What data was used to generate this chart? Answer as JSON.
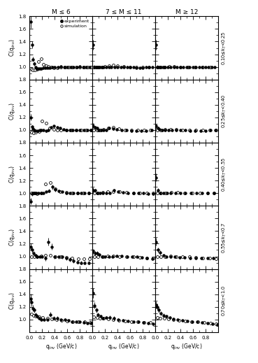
{
  "col_labels": [
    "M ≤ 6",
    "7 ≤ M ≤ 11",
    "M ≥ 12"
  ],
  "row_labels_right": [
    "0.10≤kₜ<0.25",
    "0.25≤kₜ<0.40",
    "0.40≤kₜ<0.55",
    "0.55≤kₜ<0.7",
    "0.70≤kₜ<1.0"
  ],
  "ylim": [
    0.8,
    1.8
  ],
  "yticks": [
    1.0,
    1.2,
    1.4,
    1.6,
    1.8
  ],
  "xlim": [
    0.0,
    1.0
  ],
  "xticks": [
    0.0,
    0.2,
    0.4,
    0.6,
    0.8
  ],
  "panels": {
    "r0c0_exp_x": [
      0.012,
      0.035,
      0.055,
      0.075,
      0.095,
      0.115,
      0.14,
      0.165,
      0.19,
      0.22,
      0.25,
      0.28,
      0.32,
      0.36,
      0.4,
      0.45,
      0.5,
      0.55,
      0.6,
      0.65,
      0.7,
      0.75,
      0.8,
      0.85,
      0.9,
      0.95
    ],
    "r0c0_exp_y": [
      1.72,
      1.35,
      1.12,
      1.05,
      1.0,
      0.97,
      0.97,
      0.97,
      0.97,
      0.98,
      0.98,
      0.99,
      0.99,
      1.0,
      1.0,
      1.0,
      1.01,
      1.0,
      1.0,
      1.0,
      1.0,
      1.0,
      1.01,
      1.0,
      1.0,
      1.0
    ],
    "r0c0_exp_ye": [
      0.1,
      0.06,
      0.04,
      0.03,
      0.02,
      0.02,
      0.02,
      0.02,
      0.02,
      0.02,
      0.02,
      0.02,
      0.02,
      0.02,
      0.02,
      0.02,
      0.02,
      0.02,
      0.02,
      0.02,
      0.02,
      0.02,
      0.02,
      0.02,
      0.02,
      0.02
    ],
    "r0c0_sim_x": [
      0.025,
      0.055,
      0.085,
      0.115,
      0.145,
      0.18,
      0.22,
      0.26,
      0.3,
      0.34,
      0.38,
      0.44,
      0.5,
      0.56,
      0.62,
      0.68,
      0.74,
      0.8,
      0.86,
      0.92,
      0.98
    ],
    "r0c0_sim_y": [
      0.96,
      0.95,
      0.95,
      0.96,
      1.08,
      1.13,
      1.04,
      1.02,
      1.01,
      1.0,
      0.99,
      0.99,
      1.0,
      1.0,
      1.0,
      1.0,
      1.0,
      1.0,
      1.0,
      1.0,
      1.0
    ],
    "r0c1_exp_x": [
      0.012,
      0.035,
      0.055,
      0.075,
      0.095,
      0.12,
      0.15,
      0.18,
      0.22,
      0.26,
      0.3,
      0.35,
      0.4,
      0.45,
      0.5,
      0.55,
      0.6,
      0.65,
      0.7,
      0.75,
      0.8,
      0.85,
      0.9,
      0.95
    ],
    "r0c1_exp_y": [
      1.35,
      1.0,
      1.0,
      1.0,
      1.0,
      1.0,
      1.0,
      1.0,
      1.0,
      1.0,
      1.0,
      1.0,
      1.0,
      1.0,
      1.0,
      1.0,
      1.0,
      1.0,
      0.99,
      0.99,
      0.99,
      1.0,
      1.0,
      1.0
    ],
    "r0c1_exp_ye": [
      0.08,
      0.03,
      0.02,
      0.02,
      0.02,
      0.02,
      0.02,
      0.02,
      0.02,
      0.02,
      0.02,
      0.02,
      0.02,
      0.02,
      0.02,
      0.02,
      0.02,
      0.02,
      0.02,
      0.02,
      0.02,
      0.02,
      0.02,
      0.02
    ],
    "r0c1_sim_x": [
      0.025,
      0.06,
      0.1,
      0.15,
      0.2,
      0.26,
      0.33,
      0.4,
      0.5,
      0.6,
      0.7,
      0.8,
      0.9
    ],
    "r0c1_sim_y": [
      1.0,
      1.0,
      1.0,
      1.0,
      1.01,
      1.02,
      1.03,
      1.02,
      1.01,
      1.0,
      1.0,
      1.0,
      1.0
    ],
    "r0c2_exp_x": [
      0.012,
      0.035,
      0.06,
      0.09,
      0.12,
      0.16,
      0.2,
      0.25,
      0.3,
      0.35,
      0.4,
      0.45,
      0.5,
      0.55,
      0.6,
      0.65,
      0.7,
      0.75,
      0.8,
      0.85,
      0.9,
      0.95
    ],
    "r0c2_exp_y": [
      1.35,
      1.0,
      1.0,
      1.0,
      1.0,
      1.0,
      1.0,
      1.0,
      1.0,
      1.0,
      1.0,
      1.0,
      1.0,
      1.0,
      1.0,
      1.0,
      1.0,
      1.0,
      1.0,
      1.0,
      1.0,
      1.0
    ],
    "r0c2_exp_ye": [
      0.08,
      0.03,
      0.02,
      0.02,
      0.02,
      0.02,
      0.02,
      0.02,
      0.02,
      0.02,
      0.02,
      0.02,
      0.02,
      0.02,
      0.02,
      0.02,
      0.02,
      0.02,
      0.02,
      0.02,
      0.02,
      0.02
    ],
    "r0c2_sim_x": [
      0.03,
      0.08,
      0.14,
      0.22,
      0.3,
      0.4,
      0.52,
      0.64,
      0.76,
      0.88
    ],
    "r0c2_sim_y": [
      1.0,
      1.0,
      1.0,
      1.01,
      1.01,
      1.0,
      1.0,
      1.0,
      1.0,
      1.0
    ],
    "r1c0_exp_x": [
      0.012,
      0.035,
      0.055,
      0.075,
      0.1,
      0.13,
      0.16,
      0.19,
      0.22,
      0.26,
      0.3,
      0.34,
      0.39,
      0.44,
      0.49,
      0.54,
      0.59,
      0.64,
      0.69,
      0.74,
      0.8,
      0.86,
      0.92,
      0.98
    ],
    "r1c0_exp_y": [
      1.2,
      1.05,
      1.02,
      1.0,
      0.99,
      0.99,
      1.0,
      1.0,
      1.0,
      0.99,
      1.0,
      1.04,
      1.06,
      1.04,
      1.03,
      1.01,
      1.0,
      1.0,
      1.0,
      1.0,
      1.0,
      1.0,
      1.0,
      1.0
    ],
    "r1c0_exp_ye": [
      0.05,
      0.03,
      0.02,
      0.02,
      0.02,
      0.02,
      0.02,
      0.02,
      0.02,
      0.02,
      0.02,
      0.02,
      0.02,
      0.02,
      0.02,
      0.02,
      0.02,
      0.02,
      0.02,
      0.02,
      0.02,
      0.02,
      0.02,
      0.02
    ],
    "r1c0_sim_x": [
      0.025,
      0.06,
      0.1,
      0.15,
      0.2,
      0.26,
      0.32,
      0.38,
      0.44,
      0.5,
      0.58,
      0.66,
      0.74,
      0.82,
      0.9,
      0.98
    ],
    "r1c0_sim_y": [
      0.97,
      0.96,
      0.97,
      0.98,
      1.14,
      1.11,
      1.03,
      1.01,
      1.0,
      1.0,
      1.0,
      1.0,
      1.0,
      1.0,
      1.0,
      1.0
    ],
    "r1c1_exp_x": [
      0.012,
      0.04,
      0.07,
      0.1,
      0.14,
      0.18,
      0.22,
      0.27,
      0.33,
      0.39,
      0.46,
      0.54,
      0.62,
      0.7,
      0.78,
      0.86,
      0.94
    ],
    "r1c1_exp_y": [
      1.07,
      1.04,
      1.03,
      1.0,
      1.0,
      1.0,
      1.0,
      1.03,
      1.02,
      1.01,
      1.0,
      1.0,
      0.99,
      0.99,
      0.99,
      0.99,
      1.0
    ],
    "r1c1_exp_ye": [
      0.04,
      0.03,
      0.02,
      0.02,
      0.02,
      0.02,
      0.02,
      0.02,
      0.02,
      0.02,
      0.02,
      0.02,
      0.02,
      0.02,
      0.02,
      0.02,
      0.02
    ],
    "r1c1_sim_x": [
      0.025,
      0.07,
      0.12,
      0.18,
      0.25,
      0.33,
      0.42,
      0.52,
      0.62,
      0.72,
      0.82,
      0.92
    ],
    "r1c1_sim_y": [
      1.0,
      1.0,
      1.0,
      1.01,
      1.03,
      1.04,
      1.02,
      1.0,
      1.0,
      1.0,
      1.0,
      1.0
    ],
    "r1c2_exp_x": [
      0.012,
      0.04,
      0.07,
      0.11,
      0.16,
      0.21,
      0.27,
      0.33,
      0.4,
      0.48,
      0.56,
      0.64,
      0.72,
      0.8,
      0.88,
      0.96
    ],
    "r1c2_exp_y": [
      1.06,
      1.03,
      1.01,
      1.0,
      1.0,
      1.0,
      1.0,
      1.0,
      1.0,
      1.0,
      0.99,
      0.99,
      0.99,
      0.99,
      1.0,
      1.0
    ],
    "r1c2_exp_ye": [
      0.04,
      0.02,
      0.02,
      0.02,
      0.02,
      0.02,
      0.02,
      0.02,
      0.02,
      0.02,
      0.02,
      0.02,
      0.02,
      0.02,
      0.02,
      0.02
    ],
    "r1c2_sim_x": [
      0.03,
      0.09,
      0.16,
      0.24,
      0.33,
      0.43,
      0.54,
      0.65,
      0.76,
      0.87,
      0.97
    ],
    "r1c2_sim_y": [
      1.0,
      1.0,
      1.01,
      1.01,
      1.01,
      1.0,
      1.0,
      1.0,
      1.0,
      1.0,
      1.0
    ],
    "r2c0_exp_x": [
      0.012,
      0.035,
      0.055,
      0.08,
      0.11,
      0.14,
      0.18,
      0.22,
      0.26,
      0.31,
      0.36,
      0.41,
      0.46,
      0.52,
      0.58,
      0.64,
      0.7,
      0.76,
      0.82,
      0.88,
      0.94
    ],
    "r2c0_exp_y": [
      0.87,
      0.99,
      1.0,
      1.0,
      1.0,
      1.0,
      1.0,
      1.0,
      1.02,
      1.04,
      1.1,
      1.06,
      1.04,
      1.02,
      1.0,
      1.0,
      1.0,
      1.0,
      1.0,
      1.0,
      1.0
    ],
    "r2c0_exp_ye": [
      0.05,
      0.03,
      0.02,
      0.02,
      0.02,
      0.02,
      0.02,
      0.02,
      0.02,
      0.03,
      0.04,
      0.03,
      0.02,
      0.02,
      0.02,
      0.02,
      0.02,
      0.02,
      0.02,
      0.02,
      0.02
    ],
    "r2c0_sim_x": [
      0.03,
      0.07,
      0.12,
      0.18,
      0.25,
      0.33,
      0.41,
      0.49,
      0.58,
      0.67,
      0.76,
      0.85,
      0.94
    ],
    "r2c0_sim_y": [
      1.0,
      1.0,
      0.99,
      1.0,
      1.15,
      1.17,
      1.07,
      1.03,
      1.01,
      1.0,
      1.0,
      1.0,
      1.0
    ],
    "r2c1_exp_x": [
      0.012,
      0.04,
      0.08,
      0.12,
      0.17,
      0.22,
      0.28,
      0.34,
      0.41,
      0.49,
      0.57,
      0.65,
      0.73,
      0.81,
      0.89,
      0.97
    ],
    "r2c1_exp_y": [
      1.05,
      1.05,
      1.0,
      1.0,
      1.0,
      1.0,
      1.0,
      1.05,
      1.03,
      1.01,
      1.0,
      1.0,
      1.0,
      1.0,
      0.99,
      0.99
    ],
    "r2c1_exp_ye": [
      0.04,
      0.02,
      0.02,
      0.02,
      0.02,
      0.02,
      0.02,
      0.02,
      0.02,
      0.02,
      0.02,
      0.02,
      0.02,
      0.02,
      0.02,
      0.02
    ],
    "r2c1_sim_x": [
      0.03,
      0.09,
      0.16,
      0.24,
      0.33,
      0.43,
      0.54,
      0.65,
      0.76,
      0.87,
      0.97
    ],
    "r2c1_sim_y": [
      1.0,
      1.0,
      1.01,
      1.02,
      1.03,
      1.02,
      1.01,
      1.0,
      1.0,
      1.0,
      1.0
    ],
    "r2c2_exp_x": [
      0.012,
      0.04,
      0.08,
      0.13,
      0.19,
      0.25,
      0.32,
      0.4,
      0.48,
      0.57,
      0.66,
      0.75,
      0.84,
      0.93
    ],
    "r2c2_exp_y": [
      1.25,
      1.05,
      1.0,
      1.0,
      1.0,
      1.0,
      1.0,
      1.0,
      1.0,
      1.0,
      1.0,
      1.0,
      1.0,
      1.0
    ],
    "r2c2_exp_ye": [
      0.06,
      0.03,
      0.02,
      0.02,
      0.02,
      0.02,
      0.02,
      0.02,
      0.02,
      0.02,
      0.02,
      0.02,
      0.02,
      0.02
    ],
    "r2c2_sim_x": [
      0.03,
      0.09,
      0.17,
      0.26,
      0.36,
      0.47,
      0.59,
      0.71,
      0.83,
      0.94
    ],
    "r2c2_sim_y": [
      1.0,
      1.0,
      1.0,
      1.01,
      1.01,
      1.0,
      1.0,
      1.0,
      1.0,
      1.0
    ],
    "r3c0_exp_x": [
      0.012,
      0.035,
      0.06,
      0.09,
      0.12,
      0.16,
      0.2,
      0.25,
      0.3,
      0.35,
      0.4,
      0.46,
      0.52,
      0.58,
      0.64,
      0.7,
      0.76,
      0.82,
      0.88,
      0.94
    ],
    "r3c0_exp_y": [
      1.15,
      1.1,
      1.05,
      1.02,
      1.0,
      1.0,
      1.0,
      0.97,
      1.23,
      1.15,
      0.99,
      0.99,
      0.99,
      0.97,
      0.95,
      0.93,
      0.91,
      0.9,
      0.9,
      0.9
    ],
    "r3c0_exp_ye": [
      0.05,
      0.04,
      0.03,
      0.02,
      0.02,
      0.02,
      0.02,
      0.04,
      0.06,
      0.05,
      0.03,
      0.03,
      0.03,
      0.03,
      0.03,
      0.03,
      0.03,
      0.03,
      0.03,
      0.03
    ],
    "r3c0_sim_x": [
      0.03,
      0.07,
      0.12,
      0.18,
      0.25,
      0.33,
      0.41,
      0.5,
      0.59,
      0.68,
      0.77,
      0.86,
      0.95
    ],
    "r3c0_sim_y": [
      1.0,
      1.0,
      1.0,
      1.01,
      1.02,
      1.02,
      1.0,
      0.99,
      0.98,
      0.97,
      0.96,
      0.96,
      0.96
    ],
    "r3c1_exp_x": [
      0.012,
      0.04,
      0.07,
      0.11,
      0.15,
      0.2,
      0.26,
      0.32,
      0.39,
      0.47,
      0.55,
      0.63,
      0.71,
      0.79,
      0.87,
      0.95
    ],
    "r3c1_exp_y": [
      1.08,
      1.05,
      1.05,
      1.03,
      1.0,
      1.0,
      1.0,
      1.0,
      1.01,
      1.01,
      1.0,
      1.0,
      0.99,
      0.98,
      0.97,
      0.96
    ],
    "r3c1_exp_ye": [
      0.04,
      0.03,
      0.03,
      0.02,
      0.02,
      0.02,
      0.02,
      0.02,
      0.02,
      0.02,
      0.02,
      0.02,
      0.02,
      0.02,
      0.02,
      0.02
    ],
    "r3c1_sim_x": [
      0.03,
      0.09,
      0.16,
      0.24,
      0.33,
      0.43,
      0.54,
      0.65,
      0.76,
      0.87,
      0.97
    ],
    "r3c1_sim_y": [
      1.0,
      1.0,
      1.0,
      1.01,
      1.01,
      1.0,
      0.99,
      0.99,
      0.98,
      0.97,
      0.97
    ],
    "r3c2_exp_x": [
      0.012,
      0.04,
      0.08,
      0.13,
      0.18,
      0.24,
      0.31,
      0.39,
      0.47,
      0.56,
      0.65,
      0.74,
      0.83,
      0.92
    ],
    "r3c2_exp_y": [
      1.23,
      1.1,
      1.06,
      1.02,
      1.0,
      0.99,
      0.99,
      0.98,
      0.98,
      0.97,
      0.97,
      0.97,
      0.97,
      0.97
    ],
    "r3c2_exp_ye": [
      0.06,
      0.04,
      0.03,
      0.02,
      0.02,
      0.02,
      0.02,
      0.02,
      0.02,
      0.02,
      0.02,
      0.02,
      0.02,
      0.02
    ],
    "r3c2_sim_x": [
      0.03,
      0.09,
      0.16,
      0.24,
      0.33,
      0.43,
      0.54,
      0.65,
      0.76,
      0.87,
      0.97
    ],
    "r3c2_sim_y": [
      1.0,
      1.0,
      1.0,
      1.01,
      1.0,
      1.0,
      0.99,
      0.98,
      0.97,
      0.97,
      0.96
    ],
    "r4c0_exp_x": [
      0.012,
      0.03,
      0.05,
      0.07,
      0.095,
      0.12,
      0.15,
      0.19,
      0.23,
      0.28,
      0.33,
      0.38,
      0.44,
      0.5,
      0.56,
      0.62,
      0.68,
      0.74,
      0.8,
      0.86,
      0.92,
      0.98
    ],
    "r4c0_exp_y": [
      1.33,
      1.27,
      1.18,
      1.15,
      1.08,
      1.05,
      1.02,
      1.0,
      1.0,
      1.0,
      1.08,
      1.02,
      1.02,
      1.0,
      1.0,
      0.99,
      0.97,
      0.97,
      0.96,
      0.95,
      0.94,
      0.94
    ],
    "r4c0_exp_ye": [
      0.08,
      0.06,
      0.05,
      0.04,
      0.03,
      0.03,
      0.02,
      0.02,
      0.02,
      0.02,
      0.04,
      0.03,
      0.03,
      0.02,
      0.02,
      0.02,
      0.02,
      0.02,
      0.02,
      0.02,
      0.02,
      0.02
    ],
    "r4c0_sim_x": [
      0.025,
      0.06,
      0.1,
      0.15,
      0.21,
      0.28,
      0.35,
      0.43,
      0.51,
      0.6,
      0.69,
      0.78,
      0.87,
      0.96
    ],
    "r4c0_sim_y": [
      1.09,
      1.06,
      1.05,
      1.04,
      1.03,
      1.02,
      1.01,
      1.0,
      0.99,
      0.98,
      0.97,
      0.96,
      0.96,
      0.95
    ],
    "r4c1_exp_x": [
      0.012,
      0.035,
      0.06,
      0.09,
      0.13,
      0.17,
      0.22,
      0.28,
      0.34,
      0.41,
      0.49,
      0.57,
      0.65,
      0.73,
      0.81,
      0.89,
      0.97
    ],
    "r4c1_exp_y": [
      1.42,
      1.22,
      1.15,
      1.08,
      1.05,
      1.02,
      1.03,
      1.03,
      1.02,
      1.0,
      0.99,
      0.98,
      0.97,
      0.96,
      0.95,
      0.94,
      0.93
    ],
    "r4c1_exp_ye": [
      0.08,
      0.05,
      0.04,
      0.03,
      0.03,
      0.02,
      0.02,
      0.03,
      0.03,
      0.02,
      0.02,
      0.02,
      0.02,
      0.02,
      0.02,
      0.02,
      0.02
    ],
    "r4c1_sim_x": [
      0.025,
      0.07,
      0.12,
      0.18,
      0.25,
      0.33,
      0.42,
      0.52,
      0.62,
      0.72,
      0.82,
      0.92
    ],
    "r4c1_sim_y": [
      1.04,
      1.03,
      1.02,
      1.02,
      1.01,
      1.0,
      0.99,
      0.98,
      0.97,
      0.96,
      0.95,
      0.95
    ],
    "r4c2_exp_x": [
      0.012,
      0.035,
      0.06,
      0.09,
      0.13,
      0.18,
      0.23,
      0.29,
      0.36,
      0.43,
      0.51,
      0.59,
      0.67,
      0.75,
      0.83,
      0.91,
      0.99
    ],
    "r4c2_exp_y": [
      1.23,
      1.2,
      1.15,
      1.1,
      1.07,
      1.05,
      1.03,
      1.01,
      1.0,
      0.99,
      0.98,
      0.97,
      0.96,
      0.95,
      0.94,
      0.93,
      0.92
    ],
    "r4c2_exp_ye": [
      0.06,
      0.05,
      0.04,
      0.03,
      0.03,
      0.03,
      0.02,
      0.02,
      0.02,
      0.02,
      0.02,
      0.02,
      0.02,
      0.02,
      0.02,
      0.02,
      0.02
    ],
    "r4c2_sim_x": [
      0.03,
      0.08,
      0.14,
      0.21,
      0.29,
      0.38,
      0.48,
      0.58,
      0.68,
      0.78,
      0.88,
      0.97
    ],
    "r4c2_sim_y": [
      1.03,
      1.02,
      1.02,
      1.01,
      1.0,
      0.99,
      0.98,
      0.97,
      0.96,
      0.95,
      0.94,
      0.93
    ]
  }
}
